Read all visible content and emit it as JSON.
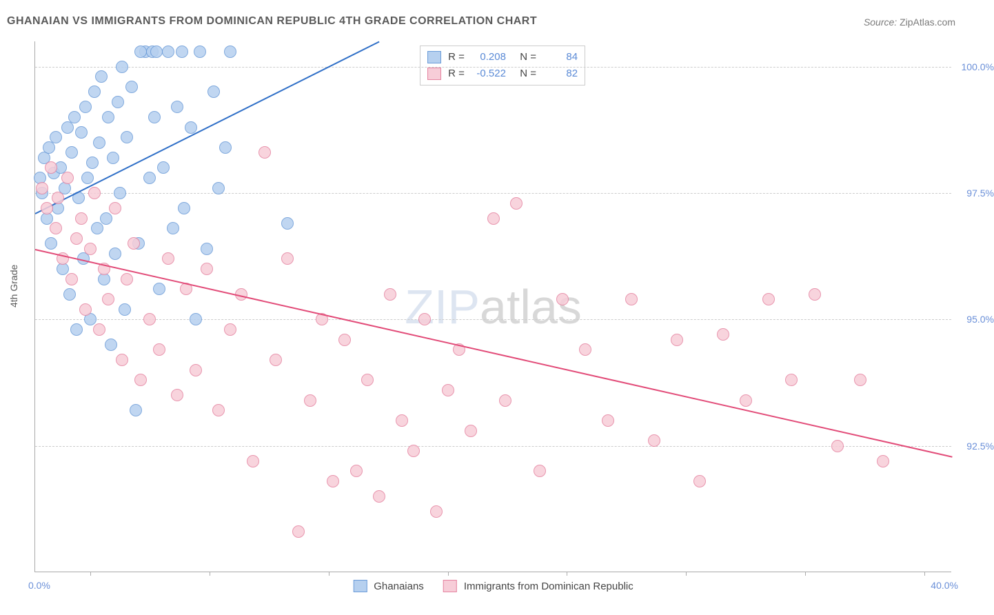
{
  "title": "GHANAIAN VS IMMIGRANTS FROM DOMINICAN REPUBLIC 4TH GRADE CORRELATION CHART",
  "source": {
    "label": "Source:",
    "value": "ZipAtlas.com"
  },
  "ylabel": "4th Grade",
  "watermark": {
    "part1": "ZIP",
    "part2": "atlas"
  },
  "axes": {
    "xmin": 0.0,
    "xmax": 40.0,
    "ymin": 90.0,
    "ymax": 100.5,
    "xmin_label": "0.0%",
    "xmax_label": "40.0%",
    "yticks": [
      {
        "v": 92.5,
        "label": "92.5%"
      },
      {
        "v": 95.0,
        "label": "95.0%"
      },
      {
        "v": 97.5,
        "label": "97.5%"
      },
      {
        "v": 100.0,
        "label": "100.0%"
      }
    ],
    "xtick_positions_pct": [
      6,
      19,
      32,
      45,
      58,
      71,
      84,
      97
    ]
  },
  "series": [
    {
      "key": "ghanaians",
      "legend": "Ghanaians",
      "fill": "#b6d0ef",
      "stroke": "#6a9bd8",
      "line": "#2f6fc7",
      "marker_radius": 9,
      "R": "0.208",
      "N": "84",
      "trend": {
        "x1": 0.0,
        "y1": 97.1,
        "x2": 15.0,
        "y2": 100.5
      },
      "points": [
        {
          "x": 0.2,
          "y": 97.8
        },
        {
          "x": 0.3,
          "y": 97.5
        },
        {
          "x": 0.4,
          "y": 98.2
        },
        {
          "x": 0.5,
          "y": 97.0
        },
        {
          "x": 0.6,
          "y": 98.4
        },
        {
          "x": 0.7,
          "y": 96.5
        },
        {
          "x": 0.8,
          "y": 97.9
        },
        {
          "x": 0.9,
          "y": 98.6
        },
        {
          "x": 1.0,
          "y": 97.2
        },
        {
          "x": 1.1,
          "y": 98.0
        },
        {
          "x": 1.2,
          "y": 96.0
        },
        {
          "x": 1.3,
          "y": 97.6
        },
        {
          "x": 1.4,
          "y": 98.8
        },
        {
          "x": 1.5,
          "y": 95.5
        },
        {
          "x": 1.6,
          "y": 98.3
        },
        {
          "x": 1.7,
          "y": 99.0
        },
        {
          "x": 1.8,
          "y": 94.8
        },
        {
          "x": 1.9,
          "y": 97.4
        },
        {
          "x": 2.0,
          "y": 98.7
        },
        {
          "x": 2.1,
          "y": 96.2
        },
        {
          "x": 2.2,
          "y": 99.2
        },
        {
          "x": 2.3,
          "y": 97.8
        },
        {
          "x": 2.4,
          "y": 95.0
        },
        {
          "x": 2.5,
          "y": 98.1
        },
        {
          "x": 2.6,
          "y": 99.5
        },
        {
          "x": 2.7,
          "y": 96.8
        },
        {
          "x": 2.8,
          "y": 98.5
        },
        {
          "x": 2.9,
          "y": 99.8
        },
        {
          "x": 3.0,
          "y": 95.8
        },
        {
          "x": 3.1,
          "y": 97.0
        },
        {
          "x": 3.2,
          "y": 99.0
        },
        {
          "x": 3.3,
          "y": 94.5
        },
        {
          "x": 3.4,
          "y": 98.2
        },
        {
          "x": 3.5,
          "y": 96.3
        },
        {
          "x": 3.6,
          "y": 99.3
        },
        {
          "x": 3.7,
          "y": 97.5
        },
        {
          "x": 3.8,
          "y": 100.0
        },
        {
          "x": 3.9,
          "y": 95.2
        },
        {
          "x": 4.0,
          "y": 98.6
        },
        {
          "x": 4.2,
          "y": 99.6
        },
        {
          "x": 4.4,
          "y": 93.2
        },
        {
          "x": 4.5,
          "y": 96.5
        },
        {
          "x": 4.8,
          "y": 100.3
        },
        {
          "x": 5.0,
          "y": 97.8
        },
        {
          "x": 5.2,
          "y": 99.0
        },
        {
          "x": 5.4,
          "y": 95.6
        },
        {
          "x": 5.6,
          "y": 98.0
        },
        {
          "x": 5.8,
          "y": 100.3
        },
        {
          "x": 6.0,
          "y": 96.8
        },
        {
          "x": 6.2,
          "y": 99.2
        },
        {
          "x": 6.5,
          "y": 97.2
        },
        {
          "x": 6.8,
          "y": 98.8
        },
        {
          "x": 7.0,
          "y": 95.0
        },
        {
          "x": 7.2,
          "y": 100.3
        },
        {
          "x": 7.5,
          "y": 96.4
        },
        {
          "x": 7.8,
          "y": 99.5
        },
        {
          "x": 8.0,
          "y": 97.6
        },
        {
          "x": 8.3,
          "y": 98.4
        },
        {
          "x": 8.5,
          "y": 100.3
        },
        {
          "x": 11.0,
          "y": 96.9
        },
        {
          "x": 5.1,
          "y": 100.3
        },
        {
          "x": 5.3,
          "y": 100.3
        },
        {
          "x": 4.6,
          "y": 100.3
        },
        {
          "x": 6.4,
          "y": 100.3
        }
      ]
    },
    {
      "key": "dominican",
      "legend": "Immigrants from Dominican Republic",
      "fill": "#f7cdd8",
      "stroke": "#e583a0",
      "line": "#e24b78",
      "marker_radius": 9,
      "R": "-0.522",
      "N": "82",
      "trend": {
        "x1": 0.0,
        "y1": 96.4,
        "x2": 40.0,
        "y2": 92.3
      },
      "points": [
        {
          "x": 0.3,
          "y": 97.6
        },
        {
          "x": 0.5,
          "y": 97.2
        },
        {
          "x": 0.7,
          "y": 98.0
        },
        {
          "x": 0.9,
          "y": 96.8
        },
        {
          "x": 1.0,
          "y": 97.4
        },
        {
          "x": 1.2,
          "y": 96.2
        },
        {
          "x": 1.4,
          "y": 97.8
        },
        {
          "x": 1.6,
          "y": 95.8
        },
        {
          "x": 1.8,
          "y": 96.6
        },
        {
          "x": 2.0,
          "y": 97.0
        },
        {
          "x": 2.2,
          "y": 95.2
        },
        {
          "x": 2.4,
          "y": 96.4
        },
        {
          "x": 2.6,
          "y": 97.5
        },
        {
          "x": 2.8,
          "y": 94.8
        },
        {
          "x": 3.0,
          "y": 96.0
        },
        {
          "x": 3.2,
          "y": 95.4
        },
        {
          "x": 3.5,
          "y": 97.2
        },
        {
          "x": 3.8,
          "y": 94.2
        },
        {
          "x": 4.0,
          "y": 95.8
        },
        {
          "x": 4.3,
          "y": 96.5
        },
        {
          "x": 4.6,
          "y": 93.8
        },
        {
          "x": 5.0,
          "y": 95.0
        },
        {
          "x": 5.4,
          "y": 94.4
        },
        {
          "x": 5.8,
          "y": 96.2
        },
        {
          "x": 6.2,
          "y": 93.5
        },
        {
          "x": 6.6,
          "y": 95.6
        },
        {
          "x": 7.0,
          "y": 94.0
        },
        {
          "x": 7.5,
          "y": 96.0
        },
        {
          "x": 8.0,
          "y": 93.2
        },
        {
          "x": 8.5,
          "y": 94.8
        },
        {
          "x": 9.0,
          "y": 95.5
        },
        {
          "x": 9.5,
          "y": 92.2
        },
        {
          "x": 10.0,
          "y": 98.3
        },
        {
          "x": 10.5,
          "y": 94.2
        },
        {
          "x": 11.0,
          "y": 96.2
        },
        {
          "x": 11.5,
          "y": 90.8
        },
        {
          "x": 12.0,
          "y": 93.4
        },
        {
          "x": 12.5,
          "y": 95.0
        },
        {
          "x": 13.0,
          "y": 91.8
        },
        {
          "x": 13.5,
          "y": 94.6
        },
        {
          "x": 14.0,
          "y": 92.0
        },
        {
          "x": 14.5,
          "y": 93.8
        },
        {
          "x": 15.0,
          "y": 91.5
        },
        {
          "x": 15.5,
          "y": 95.5
        },
        {
          "x": 16.0,
          "y": 93.0
        },
        {
          "x": 16.5,
          "y": 92.4
        },
        {
          "x": 17.0,
          "y": 95.0
        },
        {
          "x": 17.5,
          "y": 91.2
        },
        {
          "x": 18.0,
          "y": 93.6
        },
        {
          "x": 18.5,
          "y": 94.4
        },
        {
          "x": 19.0,
          "y": 92.8
        },
        {
          "x": 20.0,
          "y": 97.0
        },
        {
          "x": 20.5,
          "y": 93.4
        },
        {
          "x": 21.0,
          "y": 97.3
        },
        {
          "x": 22.0,
          "y": 92.0
        },
        {
          "x": 23.0,
          "y": 95.4
        },
        {
          "x": 24.0,
          "y": 94.4
        },
        {
          "x": 25.0,
          "y": 93.0
        },
        {
          "x": 26.0,
          "y": 95.4
        },
        {
          "x": 27.0,
          "y": 92.6
        },
        {
          "x": 28.0,
          "y": 94.6
        },
        {
          "x": 29.0,
          "y": 91.8
        },
        {
          "x": 30.0,
          "y": 94.7
        },
        {
          "x": 31.0,
          "y": 93.4
        },
        {
          "x": 32.0,
          "y": 95.4
        },
        {
          "x": 33.0,
          "y": 93.8
        },
        {
          "x": 34.0,
          "y": 95.5
        },
        {
          "x": 35.0,
          "y": 92.5
        },
        {
          "x": 36.0,
          "y": 93.8
        },
        {
          "x": 37.0,
          "y": 92.2
        }
      ]
    }
  ],
  "stats_labels": {
    "R": "R =",
    "N": "N ="
  }
}
